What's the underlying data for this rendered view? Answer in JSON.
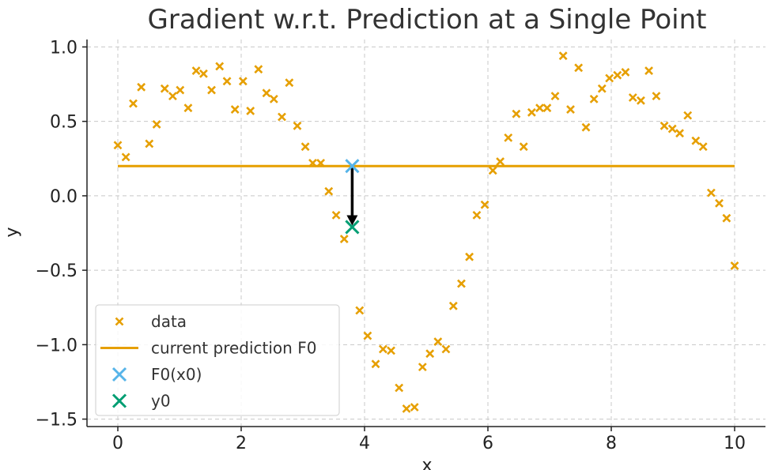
{
  "chart_data": {
    "type": "scatter",
    "title": "Gradient w.r.t. Prediction at a Single Point",
    "xlabel": "x",
    "ylabel": "y",
    "xlim": [
      -0.5,
      10.5
    ],
    "ylim": [
      -1.55,
      1.05
    ],
    "xticks": [
      0,
      2,
      4,
      6,
      8,
      10
    ],
    "xtick_labels": [
      "0",
      "2",
      "4",
      "6",
      "8",
      "10"
    ],
    "yticks": [
      1.0,
      0.5,
      0.0,
      -0.5,
      -1.0,
      -1.5
    ],
    "ytick_labels": [
      "1.0",
      "0.5",
      "0.0",
      "−0.5",
      "−1.0",
      "−1.5"
    ],
    "grid": true,
    "legend_position": "lower-left",
    "series": [
      {
        "name": "data",
        "kind": "scatter",
        "marker": "x",
        "color": "#E69F00",
        "points": [
          [
            0.0,
            0.34
          ],
          [
            0.13,
            0.26
          ],
          [
            0.25,
            0.62
          ],
          [
            0.38,
            0.73
          ],
          [
            0.51,
            0.35
          ],
          [
            0.63,
            0.48
          ],
          [
            0.76,
            0.72
          ],
          [
            0.89,
            0.67
          ],
          [
            1.01,
            0.71
          ],
          [
            1.14,
            0.59
          ],
          [
            1.27,
            0.84
          ],
          [
            1.39,
            0.82
          ],
          [
            1.52,
            0.71
          ],
          [
            1.65,
            0.87
          ],
          [
            1.77,
            0.77
          ],
          [
            1.9,
            0.58
          ],
          [
            2.03,
            0.77
          ],
          [
            2.15,
            0.57
          ],
          [
            2.28,
            0.85
          ],
          [
            2.41,
            0.69
          ],
          [
            2.53,
            0.65
          ],
          [
            2.66,
            0.53
          ],
          [
            2.78,
            0.76
          ],
          [
            2.91,
            0.47
          ],
          [
            3.04,
            0.33
          ],
          [
            3.16,
            0.22
          ],
          [
            3.29,
            0.22
          ],
          [
            3.42,
            0.03
          ],
          [
            3.54,
            -0.13
          ],
          [
            3.67,
            -0.29
          ],
          [
            3.92,
            -0.77
          ],
          [
            4.05,
            -0.94
          ],
          [
            4.18,
            -1.13
          ],
          [
            4.3,
            -1.03
          ],
          [
            4.43,
            -1.04
          ],
          [
            4.56,
            -1.29
          ],
          [
            4.68,
            -1.43
          ],
          [
            4.81,
            -1.42
          ],
          [
            4.94,
            -1.15
          ],
          [
            5.06,
            -1.06
          ],
          [
            5.19,
            -0.98
          ],
          [
            5.32,
            -1.03
          ],
          [
            5.44,
            -0.74
          ],
          [
            5.57,
            -0.59
          ],
          [
            5.7,
            -0.41
          ],
          [
            5.82,
            -0.13
          ],
          [
            5.95,
            -0.06
          ],
          [
            6.08,
            0.17
          ],
          [
            6.2,
            0.23
          ],
          [
            6.33,
            0.39
          ],
          [
            6.46,
            0.55
          ],
          [
            6.58,
            0.33
          ],
          [
            6.71,
            0.56
          ],
          [
            6.84,
            0.59
          ],
          [
            6.96,
            0.59
          ],
          [
            7.09,
            0.67
          ],
          [
            7.22,
            0.94
          ],
          [
            7.34,
            0.58
          ],
          [
            7.47,
            0.86
          ],
          [
            7.59,
            0.46
          ],
          [
            7.72,
            0.65
          ],
          [
            7.85,
            0.72
          ],
          [
            7.97,
            0.79
          ],
          [
            8.1,
            0.81
          ],
          [
            8.23,
            0.83
          ],
          [
            8.35,
            0.66
          ],
          [
            8.48,
            0.64
          ],
          [
            8.61,
            0.84
          ],
          [
            8.73,
            0.67
          ],
          [
            8.86,
            0.47
          ],
          [
            8.99,
            0.45
          ],
          [
            9.11,
            0.42
          ],
          [
            9.24,
            0.54
          ],
          [
            9.37,
            0.37
          ],
          [
            9.49,
            0.33
          ],
          [
            9.62,
            0.02
          ],
          [
            9.75,
            -0.05
          ],
          [
            9.87,
            -0.15
          ],
          [
            10.0,
            -0.47
          ]
        ]
      },
      {
        "name": "current prediction F0",
        "kind": "line",
        "color": "#E69F00",
        "points": [
          [
            0.0,
            0.2
          ],
          [
            10.0,
            0.2
          ]
        ]
      },
      {
        "name": "F0(x0)",
        "kind": "scatter",
        "marker": "x",
        "color": "#56B4E9",
        "points": [
          [
            3.8,
            0.2
          ]
        ]
      },
      {
        "name": "y0",
        "kind": "scatter",
        "marker": "x",
        "color": "#009E73",
        "points": [
          [
            3.8,
            -0.21
          ]
        ]
      }
    ],
    "annotations": [
      {
        "type": "arrow",
        "from": [
          3.8,
          0.2
        ],
        "to": [
          3.8,
          -0.21
        ],
        "color": "#000000"
      }
    ]
  }
}
